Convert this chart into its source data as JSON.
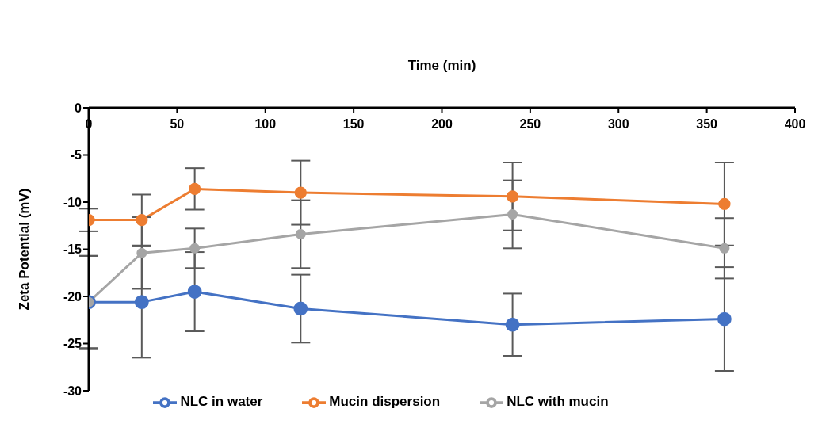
{
  "chart_data": {
    "type": "line",
    "xlabel": "Time (min)",
    "ylabel": "Zeta Potential (mV)",
    "x": [
      0,
      30,
      60,
      120,
      240,
      360
    ],
    "xlim": [
      0,
      400
    ],
    "xticks": [
      0,
      50,
      100,
      150,
      200,
      250,
      300,
      350,
      400
    ],
    "ylim": [
      -30,
      0
    ],
    "yticks": [
      -30,
      -25,
      -20,
      -15,
      -10,
      -5,
      0
    ],
    "grid": false,
    "legend": "bottom",
    "marker": "circle",
    "line_style": "solid",
    "series": [
      {
        "name": "NLC in water",
        "color": "#4472c4",
        "values": [
          -20.6,
          -20.6,
          -19.5,
          -21.3,
          -23.0,
          -22.4
        ],
        "errors": [
          4.9,
          5.9,
          4.2,
          3.6,
          3.3,
          5.5
        ]
      },
      {
        "name": "Mucin dispersion",
        "color": "#ed7d31",
        "values": [
          -11.9,
          -11.9,
          -8.6,
          -9.0,
          -9.4,
          -10.2
        ],
        "errors": [
          1.2,
          2.7,
          2.2,
          3.4,
          3.6,
          4.4
        ]
      },
      {
        "name": "NLC with mucin",
        "color": "#a5a5a5",
        "values": [
          -20.6,
          -15.4,
          -14.9,
          -13.4,
          -11.3,
          -14.9
        ],
        "errors": [
          4.9,
          3.8,
          2.1,
          3.6,
          3.6,
          3.2
        ]
      }
    ]
  }
}
